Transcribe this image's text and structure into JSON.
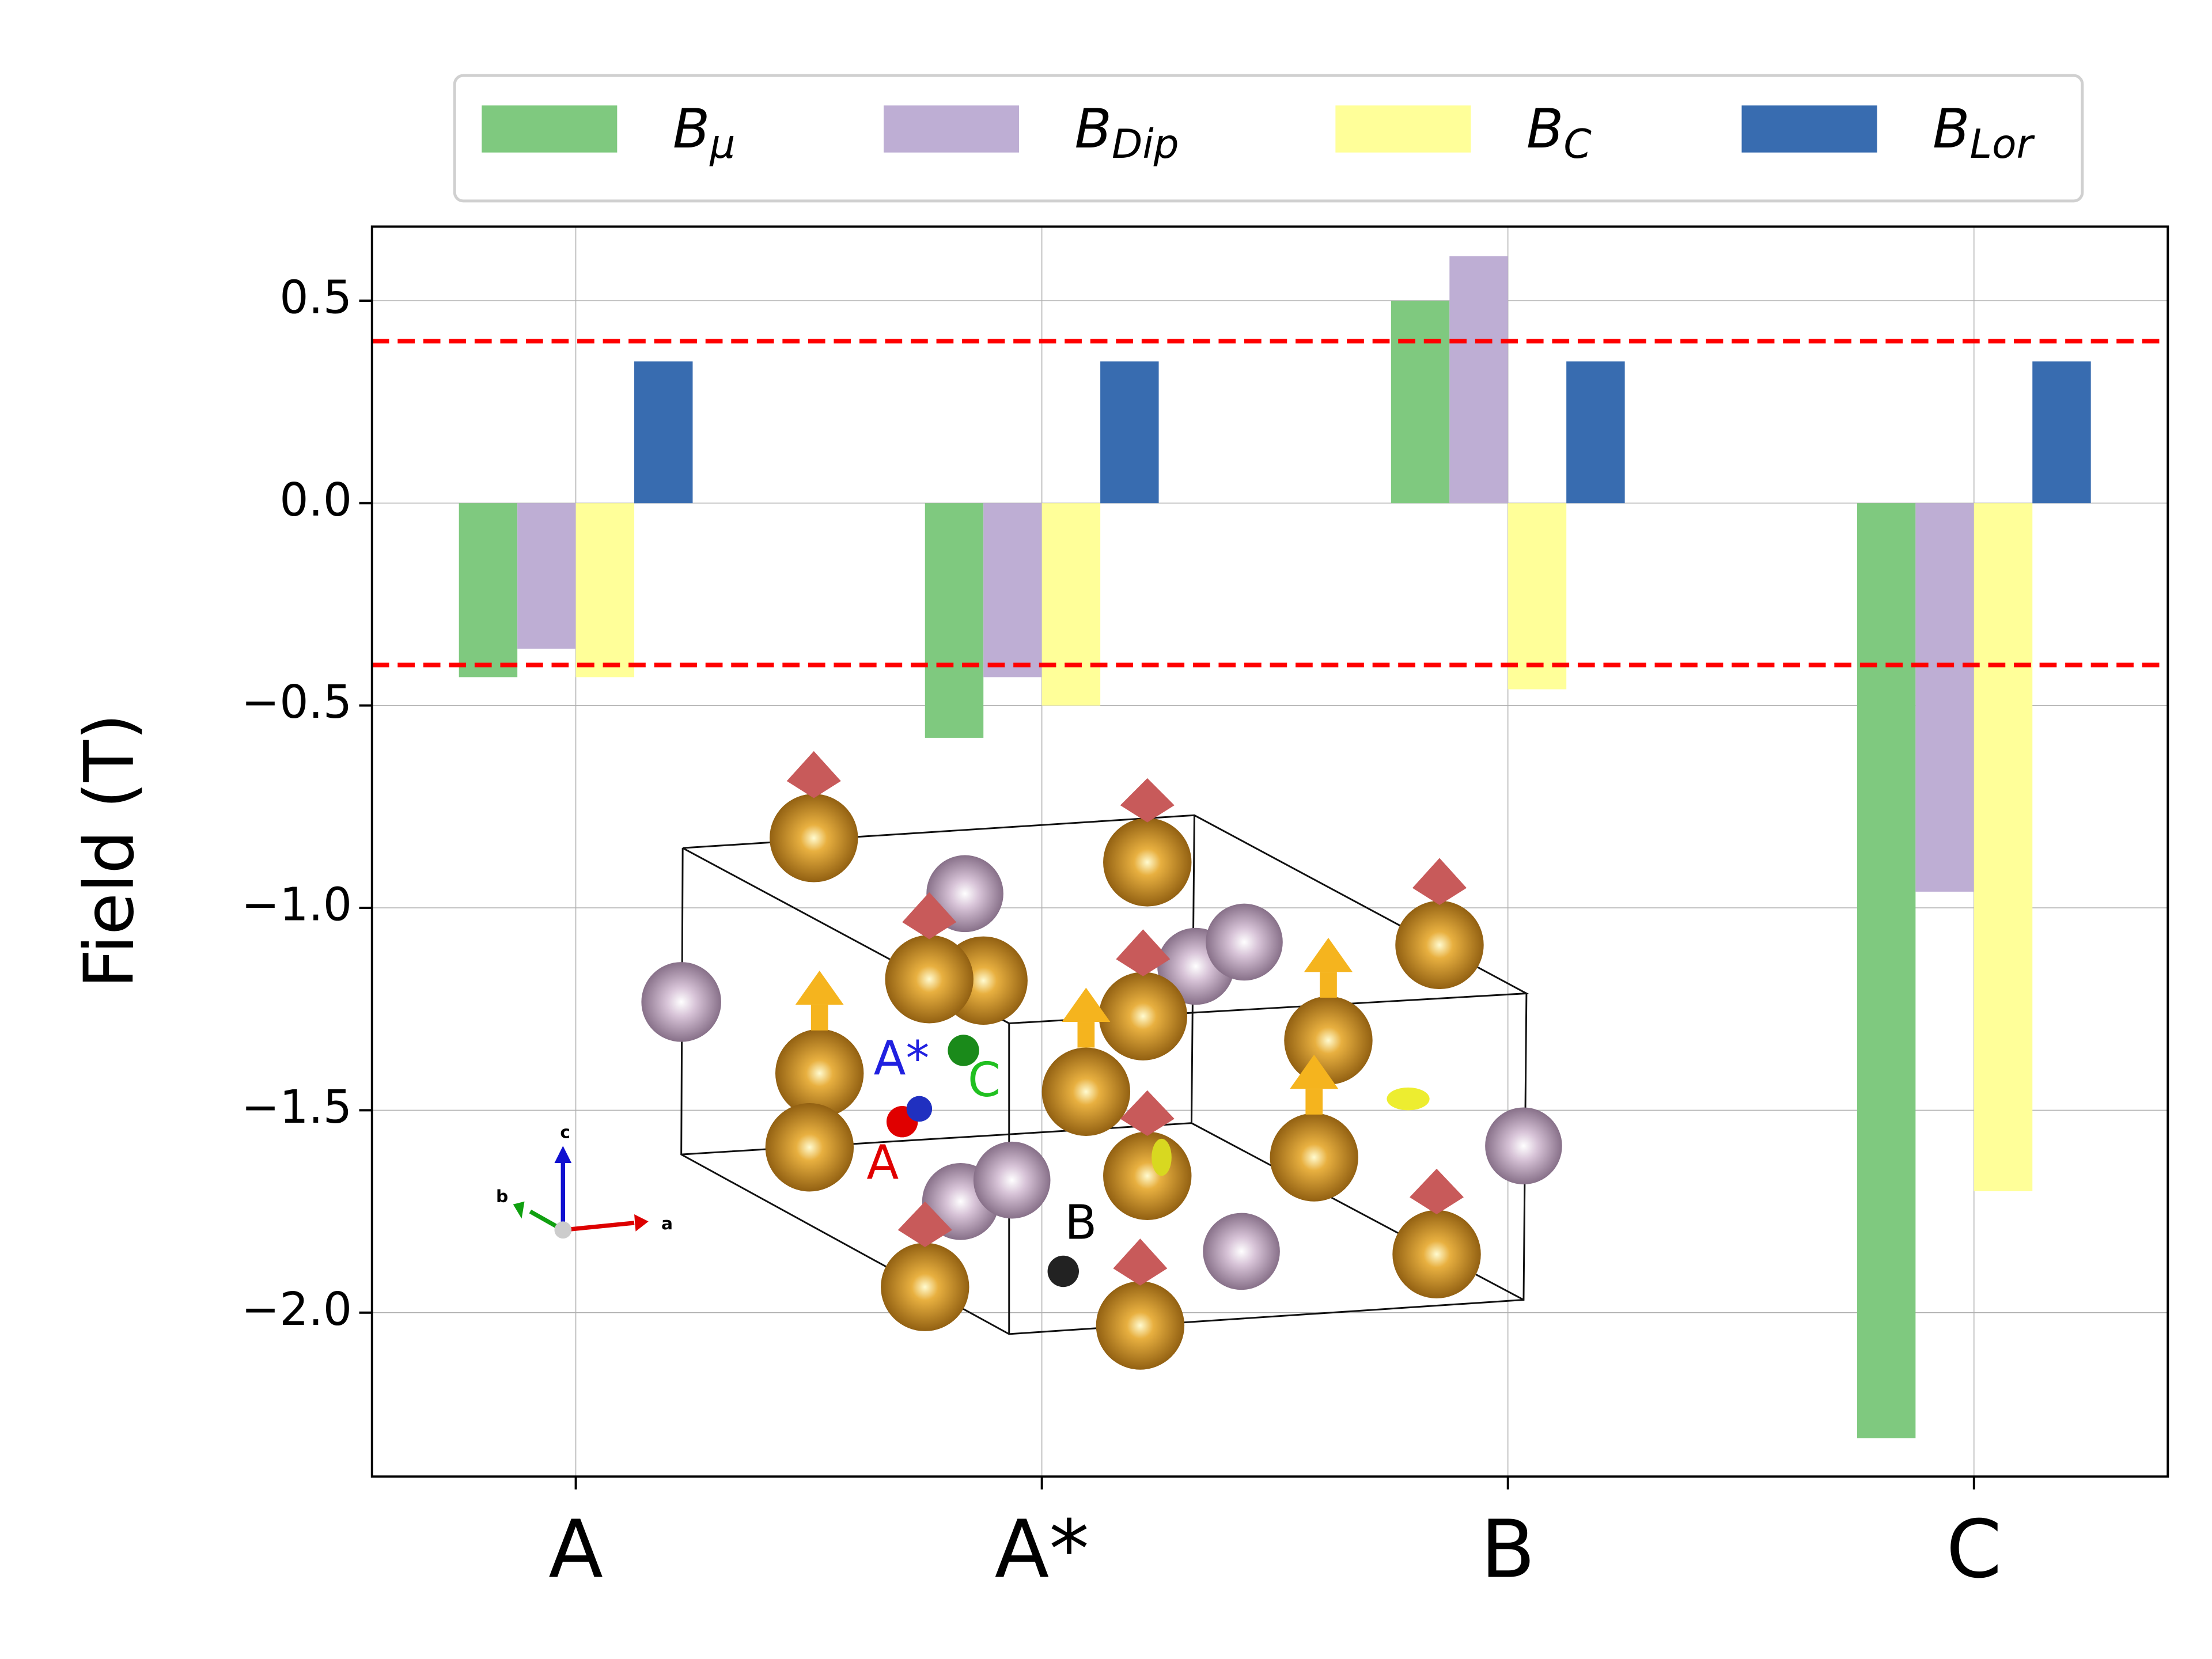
{
  "chart_data": {
    "type": "bar",
    "ylabel": "Field (T)",
    "categories": [
      "A",
      "A*",
      "B",
      "C"
    ],
    "series": [
      {
        "name": "Bμ",
        "color": "#7fc97f",
        "values": [
          -0.43,
          -0.58,
          0.5,
          -2.31
        ]
      },
      {
        "name": "BDip",
        "color": "#beaed4",
        "values": [
          -0.36,
          -0.43,
          0.61,
          -0.96
        ]
      },
      {
        "name": "BC",
        "color": "#ffff99",
        "values": [
          -0.43,
          -0.5,
          -0.46,
          -1.7
        ]
      },
      {
        "name": "BLor",
        "color": "#386cb0",
        "values": [
          0.35,
          0.35,
          0.35,
          0.35
        ]
      }
    ],
    "ylim": [
      -2.405,
      0.683
    ],
    "yticks": [
      {
        "value": 0.5,
        "label": "0.5"
      },
      {
        "value": 0,
        "label": "0.0"
      },
      {
        "value": -0.5,
        "label": "−0.5"
      },
      {
        "value": -1,
        "label": "−1.0"
      },
      {
        "value": -1.5,
        "label": "−1.5"
      },
      {
        "value": -2,
        "label": "−2.0"
      }
    ],
    "hlines": [
      {
        "value": 0.4,
        "color": "#ff0000"
      },
      {
        "value": -0.4,
        "color": "#ff0000"
      }
    ],
    "grid": true,
    "legend": "top",
    "inset": {
      "labels": [
        "A*",
        "C",
        "A",
        "B"
      ],
      "axes": [
        "a",
        "b",
        "c"
      ]
    }
  }
}
